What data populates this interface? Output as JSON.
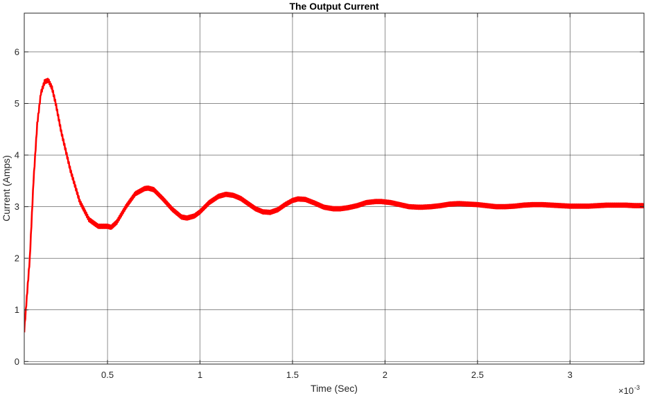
{
  "chart_data": {
    "type": "line",
    "title": "The Output Current",
    "xlabel": "Time (Sec)",
    "ylabel": "Current (Amps)",
    "x_multiplier": "×10",
    "x_multiplier_exp": "-3",
    "x_unit_scale": 0.001,
    "xlim": [
      5e-05,
      0.0034
    ],
    "ylim": [
      -0.05,
      6.75
    ],
    "x_ticks": [
      0.0005,
      0.001,
      0.0015,
      0.002,
      0.0025,
      0.003
    ],
    "x_tick_labels": [
      "0.5",
      "1",
      "1.5",
      "2",
      "2.5",
      "3"
    ],
    "y_ticks": [
      0,
      1,
      2,
      3,
      4,
      5,
      6
    ],
    "y_tick_labels": [
      "0",
      "1",
      "2",
      "3",
      "4",
      "5",
      "6"
    ],
    "grid": true,
    "colors": {
      "line": "#ff0000",
      "axes": "#262626",
      "grid": "#262626"
    },
    "series": [
      {
        "color": "#ff0000",
        "ripple_amplitude": 0.035,
        "x": [
          5e-05,
          8e-05,
          0.0001,
          0.00012,
          0.00014,
          0.00016,
          0.00018,
          0.0002,
          0.00022,
          0.00025,
          0.0003,
          0.00035,
          0.0004,
          0.00045,
          0.0005,
          0.00052,
          0.00055,
          0.0006,
          0.00065,
          0.0007,
          0.00072,
          0.00075,
          0.0008,
          0.00085,
          0.0009,
          0.00093,
          0.00097,
          0.001,
          0.00105,
          0.0011,
          0.00114,
          0.00118,
          0.00122,
          0.00126,
          0.0013,
          0.00134,
          0.00138,
          0.00142,
          0.00146,
          0.0015,
          0.00153,
          0.00157,
          0.00162,
          0.00167,
          0.00172,
          0.00176,
          0.0018,
          0.00185,
          0.0019,
          0.00195,
          0.00198,
          0.00203,
          0.00208,
          0.00213,
          0.00218,
          0.0022,
          0.00225,
          0.0023,
          0.00235,
          0.0024,
          0.00245,
          0.0025,
          0.00255,
          0.0026,
          0.00265,
          0.0027,
          0.00275,
          0.0028,
          0.00285,
          0.0029,
          0.00295,
          0.003,
          0.00305,
          0.0031,
          0.00315,
          0.0032,
          0.00325,
          0.0033,
          0.00335,
          0.0034
        ],
        "y": [
          0.6,
          2.0,
          3.5,
          4.6,
          5.2,
          5.42,
          5.45,
          5.3,
          5.0,
          4.45,
          3.7,
          3.1,
          2.75,
          2.62,
          2.62,
          2.6,
          2.7,
          3.0,
          3.25,
          3.35,
          3.36,
          3.33,
          3.15,
          2.95,
          2.8,
          2.78,
          2.82,
          2.9,
          3.08,
          3.2,
          3.24,
          3.22,
          3.16,
          3.06,
          2.96,
          2.9,
          2.89,
          2.94,
          3.04,
          3.12,
          3.15,
          3.14,
          3.07,
          2.99,
          2.96,
          2.96,
          2.98,
          3.02,
          3.08,
          3.1,
          3.1,
          3.08,
          3.04,
          3.0,
          2.99,
          2.99,
          3.0,
          3.02,
          3.05,
          3.06,
          3.05,
          3.04,
          3.02,
          3.0,
          3.0,
          3.01,
          3.03,
          3.04,
          3.04,
          3.03,
          3.02,
          3.01,
          3.01,
          3.01,
          3.02,
          3.03,
          3.03,
          3.03,
          3.02,
          3.02
        ]
      }
    ]
  }
}
